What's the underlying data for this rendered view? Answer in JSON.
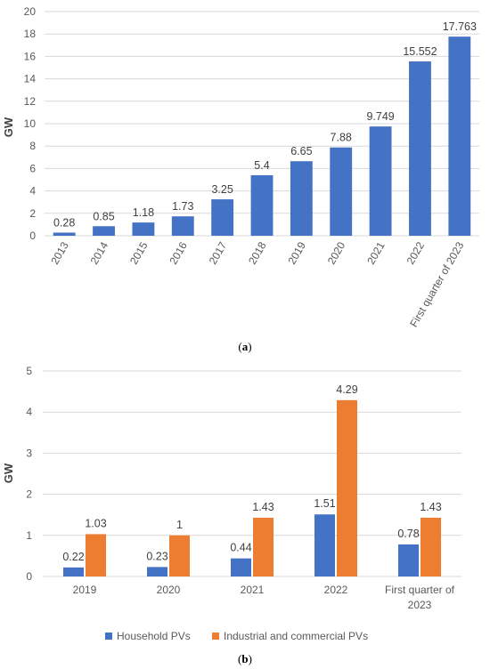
{
  "chart_data": [
    {
      "type": "bar",
      "caption": "a",
      "ylabel": "GW",
      "ylim": [
        0,
        20
      ],
      "yticks": [
        0,
        2,
        4,
        6,
        8,
        10,
        12,
        14,
        16,
        18,
        20
      ],
      "categories": [
        "2013",
        "2014",
        "2015",
        "2016",
        "2017",
        "2018",
        "2019",
        "2020",
        "2021",
        "2022",
        "First quarter of 2023"
      ],
      "values": [
        0.28,
        0.85,
        1.18,
        1.73,
        3.25,
        5.4,
        6.65,
        7.88,
        9.749,
        15.552,
        17.763
      ],
      "value_labels": [
        "0.28",
        "0.85",
        "1.18",
        "1.73",
        "3.25",
        "5.4",
        "6.65",
        "7.88",
        "9.749",
        "15.552",
        "17.763"
      ],
      "colors": [
        "#4472C4"
      ]
    },
    {
      "type": "bar",
      "caption": "b",
      "ylabel": "GW",
      "ylim": [
        0,
        5
      ],
      "yticks": [
        0,
        1,
        2,
        3,
        4,
        5
      ],
      "categories": [
        "2019",
        "2020",
        "2021",
        "2022",
        "First quarter of 2023"
      ],
      "category_lines": [
        [
          "2019"
        ],
        [
          "2020"
        ],
        [
          "2021"
        ],
        [
          "2022"
        ],
        [
          "First quarter of",
          "2023"
        ]
      ],
      "series": [
        {
          "name": "Household PVs",
          "values": [
            0.22,
            0.23,
            0.44,
            1.51,
            0.78
          ],
          "value_labels": [
            "0.22",
            "0.23",
            "0.44",
            "1.51",
            "0.78"
          ],
          "color": "#4472C4"
        },
        {
          "name": "Industrial and commercial PVs",
          "values": [
            1.03,
            1,
            1.43,
            4.29,
            1.43
          ],
          "value_labels": [
            "1.03",
            "1",
            "1.43",
            "4.29",
            "1.43"
          ],
          "color": "#ED7D31"
        }
      ],
      "legend": "bottom"
    }
  ]
}
